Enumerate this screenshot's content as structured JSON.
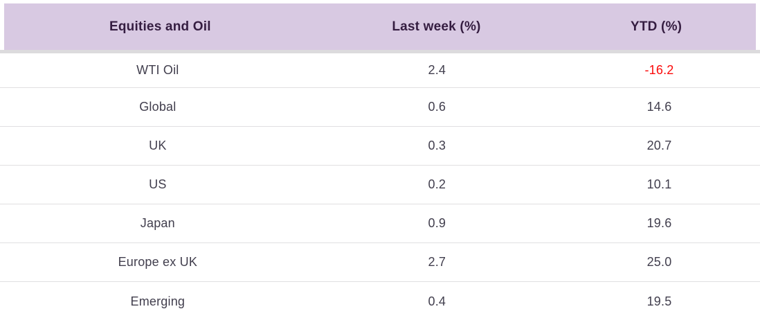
{
  "table": {
    "header": [
      "Equities and Oil",
      "Last week (%)",
      "YTD (%)"
    ],
    "rows": [
      [
        "WTI Oil",
        "2.4",
        "-16.2"
      ],
      [
        "Global",
        "0.6",
        "14.6"
      ],
      [
        "UK",
        "0.3",
        "20.7"
      ],
      [
        "US",
        "0.2",
        "10.1"
      ],
      [
        "Japan",
        "0.9",
        "19.6"
      ],
      [
        "Europe ex UK",
        "2.7",
        "25.0"
      ],
      [
        "Emerging",
        "0.4",
        "19.5"
      ]
    ]
  },
  "colors": {
    "header_bg": "#d8c9e2",
    "header_text": "#351d41",
    "body_text": "#413e4d",
    "negative_value": "#fb0a0a",
    "row_divider": "#e0dfe1",
    "header_strip": "#dcdbdd"
  },
  "chart_data": {
    "type": "table",
    "title": "Equities and Oil",
    "columns": [
      "Equities and Oil",
      "Last week (%)",
      "YTD (%)"
    ],
    "rows": [
      {
        "name": "WTI Oil",
        "last_week_pct": 2.4,
        "ytd_pct": -16.2
      },
      {
        "name": "Global",
        "last_week_pct": 0.6,
        "ytd_pct": 14.6
      },
      {
        "name": "UK",
        "last_week_pct": 0.3,
        "ytd_pct": 20.7
      },
      {
        "name": "US",
        "last_week_pct": 0.2,
        "ytd_pct": 10.1
      },
      {
        "name": "Japan",
        "last_week_pct": 0.9,
        "ytd_pct": 19.6
      },
      {
        "name": "Europe ex UK",
        "last_week_pct": 2.7,
        "ytd_pct": 25.0
      },
      {
        "name": "Emerging",
        "last_week_pct": 0.4,
        "ytd_pct": 19.5
      }
    ],
    "layout_hints": {
      "negative_values_red": true,
      "all_cells_centered": true,
      "header_background": "#d8c9e2"
    }
  }
}
